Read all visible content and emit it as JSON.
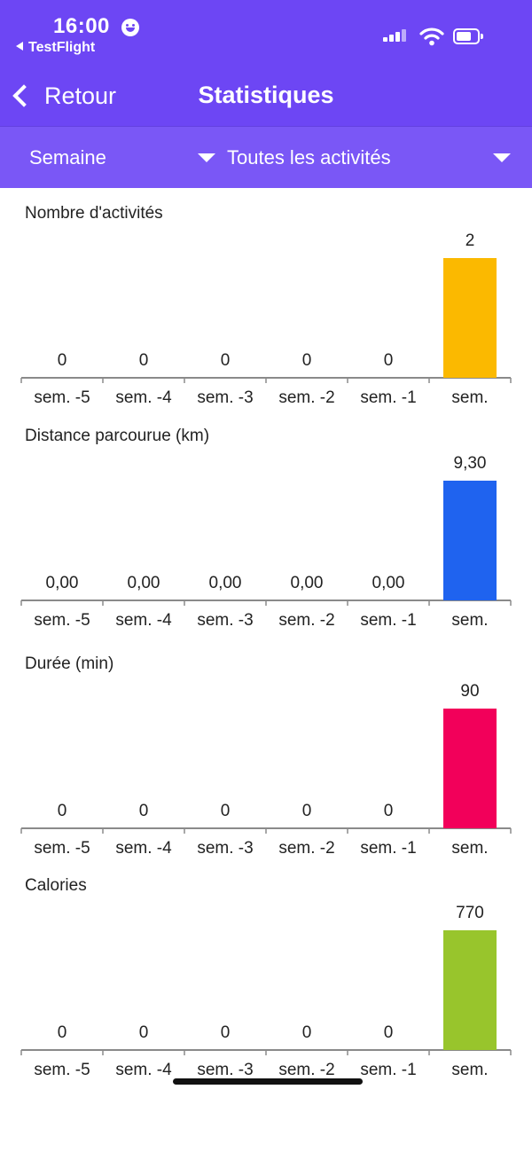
{
  "status_bar": {
    "time": "16:00",
    "back_app": "TestFlight",
    "icons": [
      "smiley-icon",
      "signal-icon",
      "wifi-icon",
      "battery-icon"
    ]
  },
  "nav": {
    "back_label": "Retour",
    "title": "Statistiques"
  },
  "filters": {
    "period": "Semaine",
    "activity": "Toutes les activités"
  },
  "colors": {
    "header": "#6d46f4",
    "filter_bar": "#7a57f6",
    "activities_bar": "#fbb900",
    "distance_bar": "#1f63ef",
    "duration_bar": "#f2005a",
    "calories_bar": "#98c52c"
  },
  "chart_data": [
    {
      "type": "bar",
      "title": "Nombre d'activités",
      "categories": [
        "sem. -5",
        "sem. -4",
        "sem. -3",
        "sem. -2",
        "sem. -1",
        "sem."
      ],
      "values": [
        0,
        0,
        0,
        0,
        0,
        2
      ],
      "value_labels": [
        "0",
        "0",
        "0",
        "0",
        "0",
        "2"
      ],
      "color": "#fbb900"
    },
    {
      "type": "bar",
      "title": "Distance parcourue (km)",
      "categories": [
        "sem. -5",
        "sem. -4",
        "sem. -3",
        "sem. -2",
        "sem. -1",
        "sem."
      ],
      "values": [
        0,
        0,
        0,
        0,
        0,
        9.3
      ],
      "value_labels": [
        "0,00",
        "0,00",
        "0,00",
        "0,00",
        "0,00",
        "9,30"
      ],
      "color": "#1f63ef"
    },
    {
      "type": "bar",
      "title": "Durée (min)",
      "categories": [
        "sem. -5",
        "sem. -4",
        "sem. -3",
        "sem. -2",
        "sem. -1",
        "sem."
      ],
      "values": [
        0,
        0,
        0,
        0,
        0,
        90
      ],
      "value_labels": [
        "0",
        "0",
        "0",
        "0",
        "0",
        "90"
      ],
      "color": "#f2005a"
    },
    {
      "type": "bar",
      "title": "Calories",
      "categories": [
        "sem. -5",
        "sem. -4",
        "sem. -3",
        "sem. -2",
        "sem. -1",
        "sem."
      ],
      "values": [
        0,
        0,
        0,
        0,
        0,
        770
      ],
      "value_labels": [
        "0",
        "0",
        "0",
        "0",
        "0",
        "770"
      ],
      "color": "#98c52c"
    }
  ]
}
